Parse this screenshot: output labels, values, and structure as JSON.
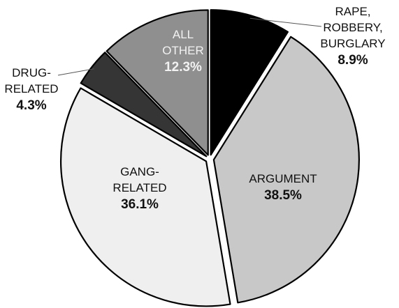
{
  "chart_data": {
    "type": "pie",
    "slices": [
      {
        "name_lines": [
          "RAPE,",
          "ROBBERY,",
          "BURGLARY"
        ],
        "percent_label": "8.9%",
        "value": 8.9,
        "color": "#000000",
        "label_color": "#111111"
      },
      {
        "name_lines": [
          "ARGUMENT"
        ],
        "percent_label": "38.5%",
        "value": 38.5,
        "color": "#c8c8c8",
        "label_color": "#111111"
      },
      {
        "name_lines": [
          "GANG-",
          "RELATED"
        ],
        "percent_label": "36.1%",
        "value": 36.1,
        "color": "#efefef",
        "label_color": "#111111"
      },
      {
        "name_lines": [
          "DRUG-",
          "RELATED"
        ],
        "percent_label": "4.3%",
        "value": 4.3,
        "color": "#353535",
        "label_color": "#111111"
      },
      {
        "name_lines": [
          "ALL",
          "OTHER"
        ],
        "percent_label": "12.3%",
        "value": 12.3,
        "color": "#8f8f8f",
        "label_color": "#f2f2f2"
      }
    ]
  }
}
